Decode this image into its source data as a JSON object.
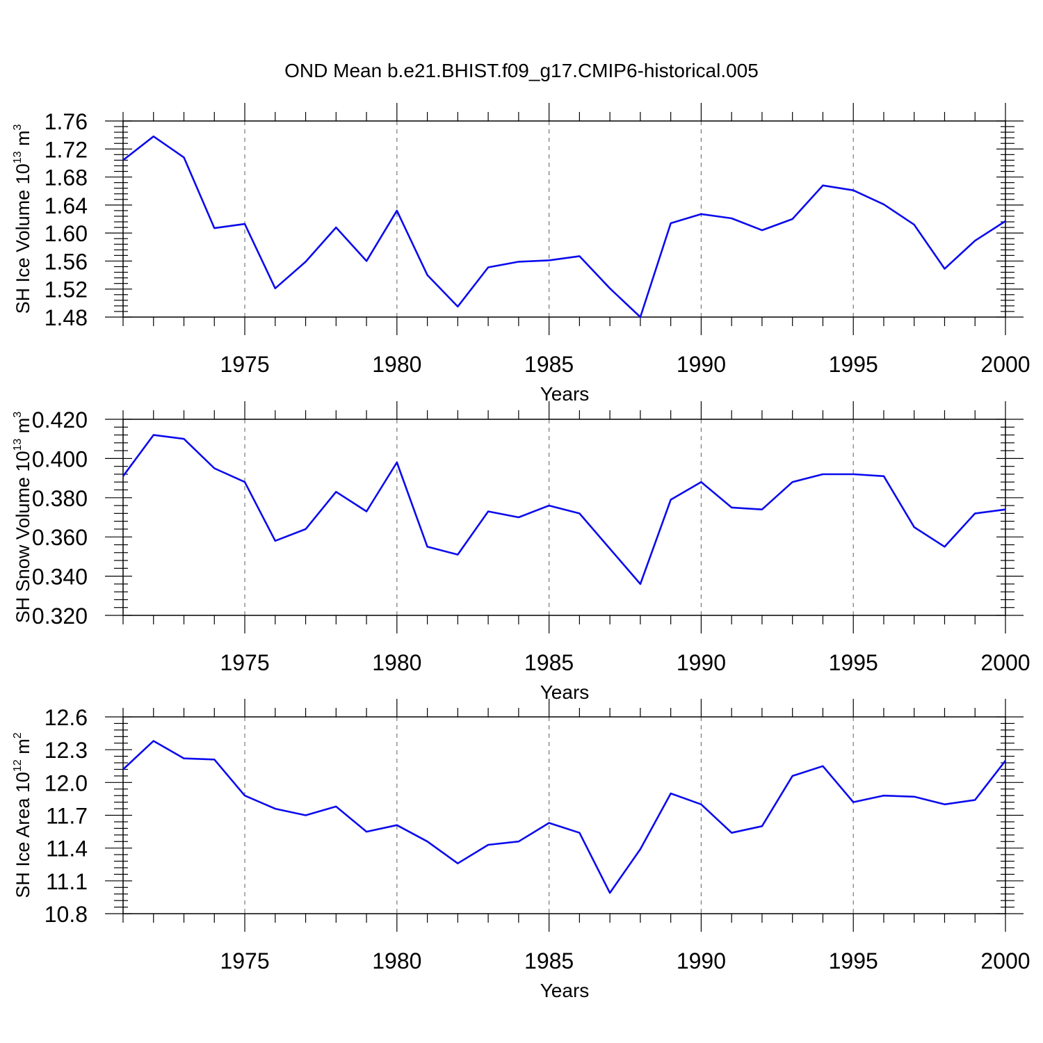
{
  "title": "OND Mean b.e21.BHIST.f09_g17.CMIP6-historical.005",
  "colors": {
    "series": "#0a0aee",
    "axis": "#000000",
    "grid": "#777777"
  },
  "chart_data": [
    {
      "type": "line",
      "xlabel": "Years",
      "ylabel": {
        "main": "SH Ice Volume 10",
        "exp": "13",
        "unit": " m",
        "unit_exp": "3"
      },
      "xlim": [
        1971,
        2000
      ],
      "ylim": [
        1.48,
        1.76
      ],
      "xticks": [
        1975,
        1980,
        1985,
        1990,
        1995,
        2000
      ],
      "xtick_labels": [
        "1975",
        "1980",
        "1985",
        "1990",
        "1995",
        "2000"
      ],
      "yticks": [
        1.48,
        1.52,
        1.56,
        1.6,
        1.64,
        1.68,
        1.72,
        1.76
      ],
      "ytick_labels": [
        "1.48",
        "1.52",
        "1.56",
        "1.60",
        "1.64",
        "1.68",
        "1.72",
        "1.76"
      ],
      "grid": "vertical dashed at major x ticks",
      "x": [
        1971,
        1972,
        1973,
        1974,
        1975,
        1976,
        1977,
        1978,
        1979,
        1980,
        1981,
        1982,
        1983,
        1984,
        1985,
        1986,
        1987,
        1988,
        1989,
        1990,
        1991,
        1992,
        1993,
        1994,
        1995,
        1996,
        1997,
        1998,
        1999,
        2000
      ],
      "y": [
        1.704,
        1.738,
        1.708,
        1.607,
        1.613,
        1.521,
        1.559,
        1.608,
        1.56,
        1.632,
        1.54,
        1.495,
        1.551,
        1.559,
        1.561,
        1.567,
        1.521,
        1.48,
        1.614,
        1.627,
        1.621,
        1.604,
        1.62,
        1.668,
        1.661,
        1.641,
        1.612,
        1.549,
        1.589,
        1.617
      ]
    },
    {
      "type": "line",
      "xlabel": "Years",
      "ylabel": {
        "main": "SH Snow Volume 10",
        "exp": "13",
        "unit": " m",
        "unit_exp": "3"
      },
      "xlim": [
        1971,
        2000
      ],
      "ylim": [
        0.32,
        0.42
      ],
      "xticks": [
        1975,
        1980,
        1985,
        1990,
        1995,
        2000
      ],
      "xtick_labels": [
        "1975",
        "1980",
        "1985",
        "1990",
        "1995",
        "2000"
      ],
      "yticks": [
        0.32,
        0.34,
        0.36,
        0.38,
        0.4,
        0.42
      ],
      "ytick_labels": [
        "0.320",
        "0.340",
        "0.360",
        "0.380",
        "0.400",
        "0.420"
      ],
      "grid": "vertical dashed at major x ticks",
      "x": [
        1971,
        1972,
        1973,
        1974,
        1975,
        1976,
        1977,
        1978,
        1979,
        1980,
        1981,
        1982,
        1983,
        1984,
        1985,
        1986,
        1987,
        1988,
        1989,
        1990,
        1991,
        1992,
        1993,
        1994,
        1995,
        1996,
        1997,
        1998,
        1999,
        2000
      ],
      "y": [
        0.391,
        0.412,
        0.41,
        0.395,
        0.388,
        0.358,
        0.364,
        0.383,
        0.373,
        0.398,
        0.355,
        0.351,
        0.373,
        0.37,
        0.376,
        0.372,
        0.354,
        0.336,
        0.379,
        0.388,
        0.375,
        0.374,
        0.388,
        0.392,
        0.392,
        0.391,
        0.365,
        0.355,
        0.372,
        0.374
      ]
    },
    {
      "type": "line",
      "xlabel": "Years",
      "ylabel": {
        "main": "SH Ice Area 10",
        "exp": "12",
        "unit": " m",
        "unit_exp": "2"
      },
      "xlim": [
        1971,
        2000
      ],
      "ylim": [
        10.8,
        12.6
      ],
      "xticks": [
        1975,
        1980,
        1985,
        1990,
        1995,
        2000
      ],
      "xtick_labels": [
        "1975",
        "1980",
        "1985",
        "1990",
        "1995",
        "2000"
      ],
      "yticks": [
        10.8,
        11.1,
        11.4,
        11.7,
        12.0,
        12.3,
        12.6
      ],
      "ytick_labels": [
        "10.8",
        "11.1",
        "11.4",
        "11.7",
        "12.0",
        "12.3",
        "12.6"
      ],
      "grid": "vertical dashed at major x ticks",
      "x": [
        1971,
        1972,
        1973,
        1974,
        1975,
        1976,
        1977,
        1978,
        1979,
        1980,
        1981,
        1982,
        1983,
        1984,
        1985,
        1986,
        1987,
        1988,
        1989,
        1990,
        1991,
        1992,
        1993,
        1994,
        1995,
        1996,
        1997,
        1998,
        1999,
        2000
      ],
      "y": [
        12.12,
        12.38,
        12.22,
        12.21,
        11.88,
        11.76,
        11.7,
        11.78,
        11.55,
        11.61,
        11.46,
        11.26,
        11.43,
        11.46,
        11.63,
        11.54,
        10.99,
        11.39,
        11.9,
        11.8,
        11.54,
        11.6,
        12.06,
        12.15,
        11.82,
        11.88,
        11.87,
        11.8,
        11.84,
        12.2
      ]
    }
  ]
}
